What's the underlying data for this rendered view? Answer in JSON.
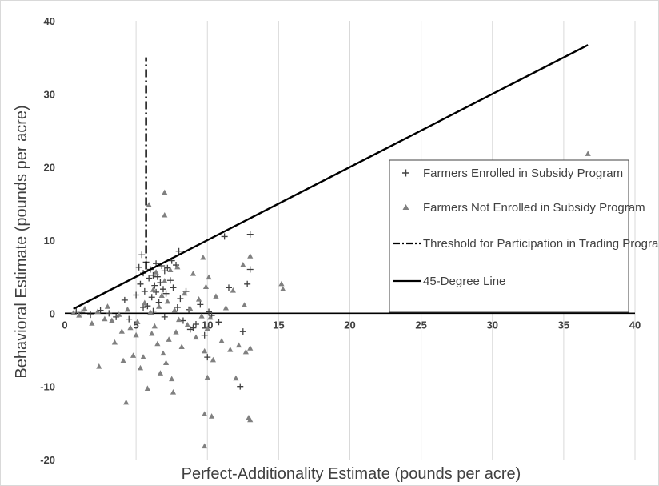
{
  "chart_data": {
    "type": "scatter",
    "xlabel": "Perfect-Additionality Estimate (pounds per acre)",
    "ylabel": "Behavioral Estimate (pounds per acre)",
    "xlim": [
      0,
      40
    ],
    "ylim": [
      -20,
      40
    ],
    "xticks": [
      "0",
      "5",
      "10",
      "15",
      "20",
      "25",
      "30",
      "35",
      "40"
    ],
    "yticks": [
      "-20",
      "-10",
      "0",
      "10",
      "20",
      "30",
      "40"
    ],
    "grid": "vertical",
    "legend_position": "right-center",
    "series": [
      {
        "name": "Farmers Enrolled in Subsidy Program",
        "marker": "plus",
        "color": "#404040",
        "points": [
          [
            0.8,
            0.3
          ],
          [
            1.2,
            0.1
          ],
          [
            1.8,
            -0.2
          ],
          [
            2.5,
            0.4
          ],
          [
            3.1,
            0.0
          ],
          [
            3.6,
            -0.5
          ],
          [
            4.2,
            1.8
          ],
          [
            4.5,
            -0.8
          ],
          [
            5.0,
            2.5
          ],
          [
            5.2,
            6.3
          ],
          [
            5.3,
            4.0
          ],
          [
            5.4,
            8.0
          ],
          [
            5.5,
            5.5
          ],
          [
            5.6,
            3.0
          ],
          [
            5.7,
            7.0
          ],
          [
            5.8,
            1.0
          ],
          [
            5.9,
            4.8
          ],
          [
            6.0,
            6.0
          ],
          [
            6.1,
            2.2
          ],
          [
            6.2,
            5.2
          ],
          [
            6.3,
            3.8
          ],
          [
            6.4,
            6.8
          ],
          [
            6.5,
            5.0
          ],
          [
            6.6,
            1.5
          ],
          [
            6.7,
            4.2
          ],
          [
            6.8,
            6.5
          ],
          [
            6.9,
            3.3
          ],
          [
            7.0,
            5.8
          ],
          [
            7.1,
            2.7
          ],
          [
            7.2,
            6.2
          ],
          [
            7.4,
            4.5
          ],
          [
            7.5,
            7.2
          ],
          [
            7.6,
            3.5
          ],
          [
            7.8,
            6.6
          ],
          [
            8.0,
            8.5
          ],
          [
            8.1,
            2.0
          ],
          [
            8.3,
            -1.0
          ],
          [
            8.5,
            3.0
          ],
          [
            8.7,
            0.5
          ],
          [
            9.0,
            -2.0
          ],
          [
            9.2,
            -1.5
          ],
          [
            9.5,
            1.2
          ],
          [
            9.8,
            -3.0
          ],
          [
            10.0,
            -6.0
          ],
          [
            10.1,
            0.2
          ],
          [
            10.3,
            -0.3
          ],
          [
            10.8,
            -1.2
          ],
          [
            11.2,
            10.5
          ],
          [
            11.5,
            3.5
          ],
          [
            12.3,
            -10.0
          ],
          [
            12.5,
            -2.5
          ],
          [
            12.8,
            4.0
          ],
          [
            13.0,
            10.8
          ],
          [
            13.0,
            6.0
          ],
          [
            6.2,
            0.3
          ],
          [
            7.0,
            -0.5
          ],
          [
            7.9,
            0.8
          ],
          [
            8.8,
            -2.2
          ],
          [
            5.5,
            0.8
          ],
          [
            6.4,
            2.9
          ]
        ]
      },
      {
        "name": "Farmers Not Enrolled in Subsidy Program",
        "marker": "triangle",
        "color": "#808080",
        "points": [
          [
            0.6,
            0.0
          ],
          [
            1.0,
            -0.3
          ],
          [
            1.4,
            0.6
          ],
          [
            1.9,
            -1.4
          ],
          [
            2.3,
            0.2
          ],
          [
            2.4,
            -7.3
          ],
          [
            2.8,
            -0.8
          ],
          [
            3.0,
            0.9
          ],
          [
            3.3,
            -1.0
          ],
          [
            3.5,
            -4.0
          ],
          [
            3.8,
            -0.2
          ],
          [
            4.0,
            -2.5
          ],
          [
            4.1,
            -6.5
          ],
          [
            4.3,
            -12.2
          ],
          [
            4.4,
            0.5
          ],
          [
            4.6,
            -2.0
          ],
          [
            4.8,
            -5.8
          ],
          [
            5.0,
            -3.0
          ],
          [
            5.1,
            -1.2
          ],
          [
            5.3,
            -7.5
          ],
          [
            5.5,
            -6.0
          ],
          [
            5.6,
            1.4
          ],
          [
            5.8,
            -10.3
          ],
          [
            5.9,
            14.8
          ],
          [
            6.0,
            0.1
          ],
          [
            6.1,
            -2.8
          ],
          [
            6.2,
            3.2
          ],
          [
            6.3,
            -1.8
          ],
          [
            6.4,
            5.6
          ],
          [
            6.5,
            -4.2
          ],
          [
            6.6,
            0.9
          ],
          [
            6.7,
            -8.2
          ],
          [
            6.8,
            2.4
          ],
          [
            6.9,
            -5.5
          ],
          [
            7.0,
            4.4
          ],
          [
            7.0,
            16.5
          ],
          [
            7.0,
            13.4
          ],
          [
            7.1,
            -6.8
          ],
          [
            7.2,
            1.6
          ],
          [
            7.3,
            -3.6
          ],
          [
            7.4,
            5.9
          ],
          [
            7.5,
            -9.0
          ],
          [
            7.6,
            -10.8
          ],
          [
            7.7,
            0.4
          ],
          [
            7.8,
            -2.6
          ],
          [
            7.9,
            6.3
          ],
          [
            8.0,
            -0.9
          ],
          [
            8.2,
            -4.6
          ],
          [
            8.4,
            2.7
          ],
          [
            8.6,
            -1.6
          ],
          [
            8.8,
            0.6
          ],
          [
            9.0,
            5.4
          ],
          [
            9.2,
            -3.3
          ],
          [
            9.4,
            1.9
          ],
          [
            9.6,
            -0.4
          ],
          [
            9.7,
            7.6
          ],
          [
            9.8,
            -5.2
          ],
          [
            9.8,
            -13.8
          ],
          [
            9.8,
            -18.2
          ],
          [
            9.9,
            3.6
          ],
          [
            10.0,
            -8.8
          ],
          [
            10.0,
            -2.1
          ],
          [
            10.1,
            4.9
          ],
          [
            10.2,
            -0.6
          ],
          [
            10.3,
            -14.1
          ],
          [
            10.4,
            -6.4
          ],
          [
            10.6,
            2.3
          ],
          [
            11.0,
            -3.8
          ],
          [
            11.3,
            0.7
          ],
          [
            11.6,
            -5.0
          ],
          [
            11.8,
            3.1
          ],
          [
            12.0,
            -8.9
          ],
          [
            12.2,
            -4.4
          ],
          [
            12.5,
            6.6
          ],
          [
            12.6,
            1.1
          ],
          [
            12.7,
            -5.3
          ],
          [
            12.9,
            -14.3
          ],
          [
            13.0,
            -14.6
          ],
          [
            13.0,
            -4.8
          ],
          [
            13.0,
            7.8
          ],
          [
            15.2,
            4.0
          ],
          [
            15.3,
            3.3
          ],
          [
            36.7,
            21.8
          ]
        ]
      },
      {
        "name": "Threshold for Participation in Trading Program",
        "style": "dash-dot",
        "color": "#000000",
        "x": [
          5.7,
          5.7
        ],
        "y": [
          6.0,
          35.0
        ]
      },
      {
        "name": "45-Degree Line",
        "style": "solid",
        "color": "#000000",
        "x": [
          0.6,
          36.7
        ],
        "y": [
          0.6,
          36.7
        ]
      }
    ]
  }
}
